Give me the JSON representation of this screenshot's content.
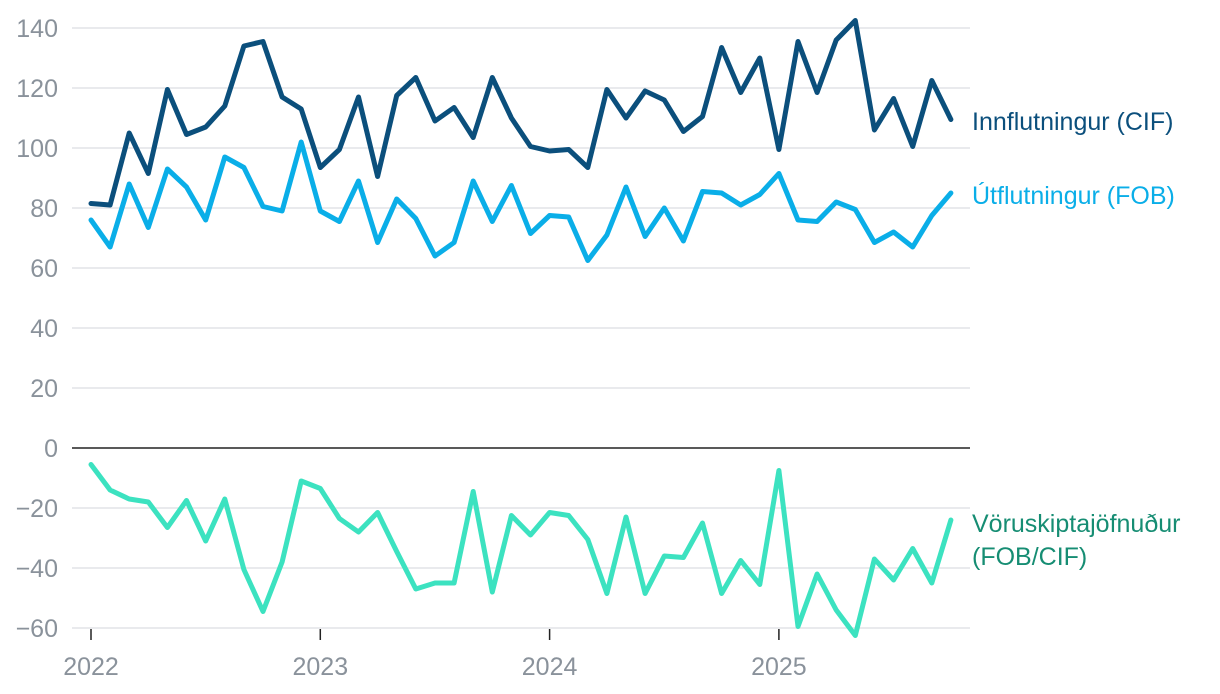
{
  "chart_data": {
    "type": "line",
    "title": "",
    "xlabel": "",
    "ylabel": "",
    "ylim": [
      -60,
      140
    ],
    "y_ticks": [
      140,
      120,
      100,
      80,
      60,
      40,
      20,
      0,
      -20,
      -40,
      -60
    ],
    "y_tick_labels": [
      "140",
      "120",
      "100",
      "80",
      "60",
      "40",
      "20",
      "0",
      "−20",
      "−40",
      "−60"
    ],
    "x_ticks": [
      "2022",
      "2023",
      "2024",
      "2025"
    ],
    "x_start": "2022-01",
    "x_end": "2025-10",
    "grid": true,
    "legend": "direct labels at right end of lines",
    "series": [
      {
        "name": "Innflutningur (CIF)",
        "color": "#0b4f7c",
        "values": [
          81.5,
          81,
          105,
          91.5,
          119.5,
          104.5,
          107,
          114,
          134,
          135.5,
          117,
          113,
          93.5,
          99.5,
          117,
          90.5,
          117.5,
          123.5,
          109,
          113.5,
          103.5,
          123.5,
          110,
          100.5,
          99,
          99.5,
          93.5,
          119.5,
          110,
          119,
          116,
          105.5,
          110.5,
          133.5,
          118.5,
          130,
          99.5,
          135.5,
          118.5,
          136,
          142.5,
          106,
          116.5,
          100.5,
          122.5,
          109.5
        ]
      },
      {
        "name": "Útflutningur (FOB)",
        "color": "#0aaee8",
        "values": [
          76,
          67,
          88,
          73.5,
          93,
          87,
          76,
          97,
          93.5,
          80.5,
          79,
          102,
          79,
          75.5,
          89,
          68.5,
          83,
          76.5,
          64,
          68.5,
          89,
          75.5,
          87.5,
          71.5,
          77.5,
          77,
          62.5,
          71,
          87,
          70.5,
          80,
          69,
          85.5,
          85,
          81,
          84.5,
          91.5,
          76,
          75.5,
          82,
          79.5,
          68.5,
          72,
          67,
          77.5,
          85
        ]
      },
      {
        "name": "Vöruskiptajöfnuður (FOB/CIF)",
        "name_lines": [
          "Vöruskiptajöfnuður",
          "(FOB/CIF)"
        ],
        "color": "#3ce2c0",
        "label_color": "#168d73",
        "values": [
          -5.5,
          -14,
          -17,
          -18,
          -26.5,
          -17.5,
          -31,
          -17,
          -40.5,
          -54.5,
          -38,
          -11,
          -13.5,
          -23.5,
          -28,
          -21.5,
          -34.5,
          -47,
          -45,
          -45,
          -14.5,
          -48,
          -22.5,
          -29,
          -21.5,
          -22.5,
          -30.5,
          -48.5,
          -23,
          -48.5,
          -36,
          -36.5,
          -25,
          -48.5,
          -37.5,
          -45.5,
          -7.5,
          -59.5,
          -42,
          -54,
          -62.5,
          -37,
          -44,
          -33.5,
          -45,
          -24
        ]
      }
    ]
  }
}
